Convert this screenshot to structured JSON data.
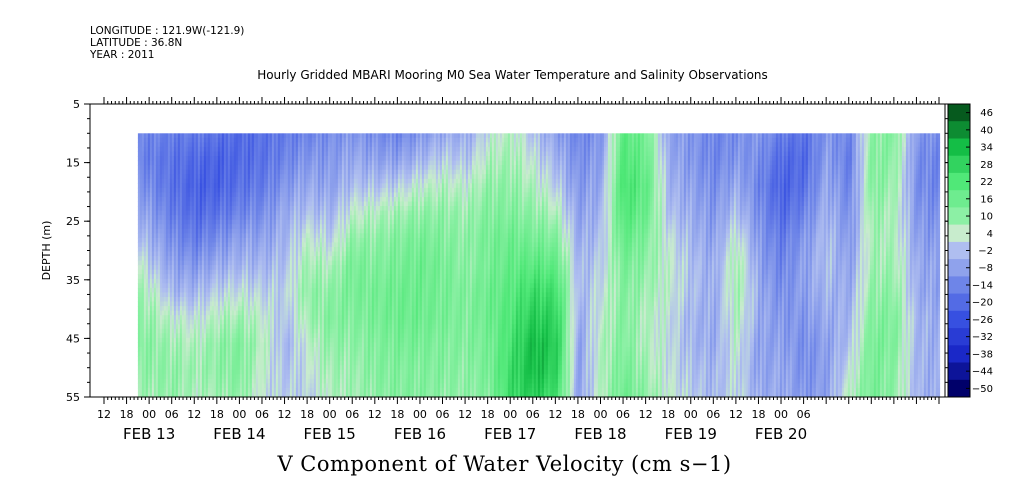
{
  "header": {
    "longitude": "LONGITUDE : 121.9W(-121.9)",
    "latitude": "LATITUDE : 36.8N",
    "year": "YEAR : 2011"
  },
  "chart_data": {
    "type": "heatmap",
    "title": "Hourly Gridded MBARI Mooring M0 Sea Water Temperature and Salinity Observations",
    "xlabel": "V Component of Water Velocity (cm s−1)",
    "ylabel": "DEPTH (m)",
    "ylim": [
      55,
      5
    ],
    "y_ticks": [
      5,
      15,
      25,
      35,
      45,
      55
    ],
    "x_range_hours": [
      0,
      222
    ],
    "x_hour_ticks": [
      "12",
      "18",
      "00",
      "06",
      "12",
      "18",
      "00",
      "06",
      "12",
      "18",
      "00",
      "06",
      "12",
      "18",
      "00",
      "06",
      "12",
      "18",
      "00",
      "06",
      "12",
      "18",
      "00",
      "06",
      "12",
      "18",
      "00",
      "06",
      "12",
      "18",
      "00",
      "06"
    ],
    "x_date_labels": [
      "FEB 13",
      "FEB 14",
      "FEB 15",
      "FEB 16",
      "FEB 17",
      "FEB 18",
      "FEB 19",
      "FEB 20"
    ],
    "data_start_hour": 9,
    "data_end_hour": 222,
    "data_top_depth": 10,
    "colorbar_levels": [
      -50,
      -44,
      -38,
      -32,
      -26,
      -20,
      -14,
      -8,
      -2,
      4,
      10,
      16,
      22,
      28,
      34,
      40,
      46
    ],
    "colorbar_labels": [
      "46",
      "40",
      "34",
      "28",
      "22",
      "16",
      "10",
      "4",
      "−2",
      "−8",
      "−14",
      "−20",
      "−26",
      "−32",
      "−38",
      "−44",
      "−50"
    ],
    "colors": {
      "negative": "#6e85e8",
      "strong_negative": "#2a3fd8",
      "neutral": "#bfe0c8",
      "positive": "#5ef08a",
      "strong_positive": "#0aa33a",
      "extreme_positive": "#044c16",
      "extreme_negative": "#00006a"
    },
    "field_columns": [
      {
        "hour": 9,
        "profile": [
          -14,
          -14,
          -10,
          -6,
          -2,
          4,
          8,
          10,
          12,
          10,
          8
        ]
      },
      {
        "hour": 13,
        "profile": [
          -14,
          -16,
          -14,
          -10,
          -6,
          -2,
          4,
          8,
          10,
          10,
          8
        ]
      },
      {
        "hour": 18,
        "profile": [
          -16,
          -18,
          -18,
          -16,
          -12,
          -8,
          -4,
          4,
          8,
          10,
          10
        ]
      },
      {
        "hour": 24,
        "profile": [
          -16,
          -20,
          -22,
          -20,
          -16,
          -10,
          -4,
          2,
          6,
          8,
          6
        ]
      },
      {
        "hour": 30,
        "profile": [
          -18,
          -22,
          -22,
          -18,
          -12,
          -6,
          0,
          6,
          10,
          10,
          8
        ]
      },
      {
        "hour": 36,
        "profile": [
          -20,
          -20,
          -18,
          -14,
          -8,
          -4,
          2,
          8,
          12,
          12,
          10
        ]
      },
      {
        "hour": 42,
        "profile": [
          -18,
          -18,
          -16,
          -12,
          -8,
          -4,
          0,
          4,
          6,
          4,
          2
        ]
      },
      {
        "hour": 48,
        "profile": [
          -16,
          -14,
          -10,
          -6,
          -4,
          -2,
          0,
          -2,
          -4,
          -2,
          0
        ]
      },
      {
        "hour": 54,
        "profile": [
          -14,
          -10,
          -6,
          -2,
          4,
          8,
          10,
          8,
          4,
          2,
          0
        ]
      },
      {
        "hour": 60,
        "profile": [
          -12,
          -10,
          -8,
          -4,
          0,
          6,
          10,
          12,
          10,
          8,
          6
        ]
      },
      {
        "hour": 66,
        "profile": [
          -10,
          -6,
          -2,
          4,
          10,
          14,
          14,
          12,
          10,
          8,
          8
        ]
      },
      {
        "hour": 72,
        "profile": [
          -12,
          -8,
          -2,
          6,
          10,
          12,
          14,
          14,
          12,
          12,
          10
        ]
      },
      {
        "hour": 78,
        "profile": [
          -14,
          -8,
          0,
          8,
          12,
          14,
          16,
          16,
          14,
          12,
          12
        ]
      },
      {
        "hour": 84,
        "profile": [
          -10,
          -4,
          4,
          10,
          14,
          16,
          16,
          16,
          14,
          12,
          12
        ]
      },
      {
        "hour": 90,
        "profile": [
          -6,
          0,
          6,
          10,
          12,
          14,
          14,
          14,
          12,
          12,
          10
        ]
      },
      {
        "hour": 96,
        "profile": [
          -6,
          -2,
          4,
          8,
          10,
          10,
          12,
          12,
          12,
          10,
          10
        ]
      },
      {
        "hour": 102,
        "profile": [
          2,
          6,
          10,
          12,
          14,
          14,
          16,
          16,
          14,
          14,
          12
        ]
      },
      {
        "hour": 108,
        "profile": [
          6,
          8,
          10,
          12,
          16,
          18,
          20,
          22,
          24,
          26,
          26
        ]
      },
      {
        "hour": 114,
        "profile": [
          -2,
          2,
          6,
          10,
          14,
          20,
          26,
          30,
          34,
          34,
          30
        ]
      },
      {
        "hour": 120,
        "profile": [
          -8,
          -4,
          0,
          6,
          12,
          18,
          24,
          28,
          30,
          28,
          24
        ]
      },
      {
        "hour": 126,
        "profile": [
          -14,
          -12,
          -10,
          -8,
          -6,
          -4,
          -4,
          -6,
          -8,
          -8,
          -8
        ]
      },
      {
        "hour": 132,
        "profile": [
          -10,
          -8,
          -6,
          -4,
          -2,
          0,
          2,
          4,
          6,
          6,
          6
        ]
      },
      {
        "hour": 138,
        "profile": [
          20,
          22,
          24,
          22,
          18,
          14,
          12,
          12,
          12,
          14,
          16
        ]
      },
      {
        "hour": 144,
        "profile": [
          14,
          16,
          18,
          16,
          12,
          10,
          8,
          6,
          6,
          8,
          10
        ]
      },
      {
        "hour": 150,
        "profile": [
          -8,
          -6,
          -4,
          -2,
          2,
          4,
          4,
          2,
          2,
          2,
          4
        ]
      },
      {
        "hour": 156,
        "profile": [
          -10,
          -10,
          -8,
          -6,
          -4,
          -2,
          -2,
          -4,
          -4,
          -2,
          0
        ]
      },
      {
        "hour": 162,
        "profile": [
          -14,
          -14,
          -12,
          -10,
          -8,
          -6,
          -6,
          -6,
          -6,
          -4,
          -4
        ]
      },
      {
        "hour": 168,
        "profile": [
          -12,
          -10,
          -6,
          -2,
          4,
          8,
          8,
          6,
          4,
          2,
          2
        ]
      },
      {
        "hour": 174,
        "profile": [
          -10,
          -12,
          -14,
          -12,
          -10,
          -8,
          -6,
          -6,
          -8,
          -8,
          -6
        ]
      },
      {
        "hour": 180,
        "profile": [
          -16,
          -20,
          -22,
          -20,
          -16,
          -14,
          -12,
          -10,
          -8,
          -6,
          -6
        ]
      },
      {
        "hour": 186,
        "profile": [
          -18,
          -20,
          -18,
          -14,
          -10,
          -8,
          -8,
          -10,
          -12,
          -12,
          -10
        ]
      },
      {
        "hour": 192,
        "profile": [
          -10,
          -8,
          -6,
          -4,
          -2,
          -2,
          -4,
          -6,
          -8,
          -8,
          -8
        ]
      },
      {
        "hour": 198,
        "profile": [
          -14,
          -16,
          -14,
          -12,
          -10,
          -8,
          -6,
          -4,
          -2,
          2,
          6
        ]
      },
      {
        "hour": 204,
        "profile": [
          10,
          12,
          12,
          10,
          8,
          8,
          10,
          12,
          14,
          14,
          14
        ]
      },
      {
        "hour": 210,
        "profile": [
          12,
          10,
          8,
          6,
          6,
          8,
          10,
          12,
          12,
          10,
          10
        ]
      },
      {
        "hour": 216,
        "profile": [
          -10,
          -12,
          -12,
          -10,
          -8,
          -6,
          -6,
          -4,
          -4,
          -4,
          -4
        ]
      },
      {
        "hour": 222,
        "profile": [
          -12,
          -14,
          -14,
          -12,
          -10,
          -8,
          -8,
          -6,
          -6,
          -6,
          -6
        ]
      }
    ]
  }
}
